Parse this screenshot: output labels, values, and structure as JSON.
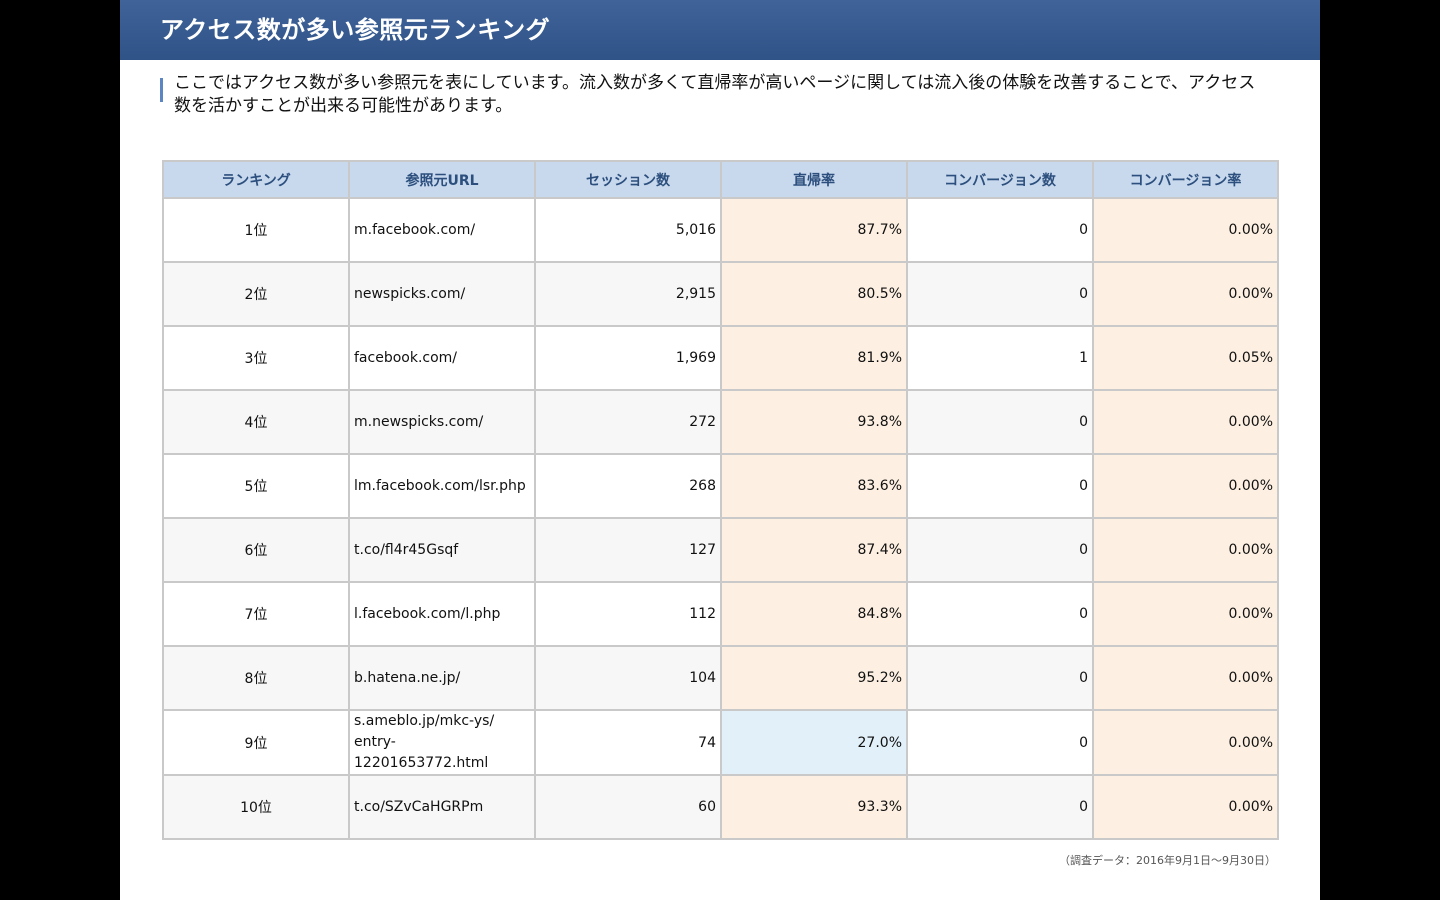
{
  "header": {
    "title": "アクセス数が多い参照元ランキング"
  },
  "lead": {
    "text": "ここではアクセス数が多い参照元を表にしています。流入数が多くて直帰率が高いページに関しては流入後の体験を改善することで、アクセス数を活かすことが出来る可能性があります。"
  },
  "table": {
    "headers": {
      "rank": "ランキング",
      "url": "参照元URL",
      "sessions": "セッション数",
      "bounce": "直帰率",
      "conversions": "コンバージョン数",
      "conv_rate": "コンバージョン率"
    },
    "rows": [
      {
        "rank": "1位",
        "url_lines": [
          "m.facebook.com/",
          ""
        ],
        "sessions": "5,016",
        "bounce": "87.7%",
        "conversions": "0",
        "conv_rate": "0.00%"
      },
      {
        "rank": "2位",
        "url_lines": [
          "newspicks.com/",
          ""
        ],
        "sessions": "2,915",
        "bounce": "80.5%",
        "conversions": "0",
        "conv_rate": "0.00%"
      },
      {
        "rank": "3位",
        "url_lines": [
          "facebook.com/",
          ""
        ],
        "sessions": "1,969",
        "bounce": "81.9%",
        "conversions": "1",
        "conv_rate": "0.05%"
      },
      {
        "rank": "4位",
        "url_lines": [
          "m.newspicks.com/",
          ""
        ],
        "sessions": "272",
        "bounce": "93.8%",
        "conversions": "0",
        "conv_rate": "0.00%"
      },
      {
        "rank": "5位",
        "url_lines": [
          "lm.facebook.com/lsr.php",
          ""
        ],
        "sessions": "268",
        "bounce": "83.6%",
        "conversions": "0",
        "conv_rate": "0.00%"
      },
      {
        "rank": "6位",
        "url_lines": [
          "t.co/fl4r45Gsqf",
          ""
        ],
        "sessions": "127",
        "bounce": "87.4%",
        "conversions": "0",
        "conv_rate": "0.00%"
      },
      {
        "rank": "7位",
        "url_lines": [
          "l.facebook.com/l.php",
          ""
        ],
        "sessions": "112",
        "bounce": "84.8%",
        "conversions": "0",
        "conv_rate": "0.00%"
      },
      {
        "rank": "8位",
        "url_lines": [
          "b.hatena.ne.jp/",
          ""
        ],
        "sessions": "104",
        "bounce": "95.2%",
        "conversions": "0",
        "conv_rate": "0.00%"
      },
      {
        "rank": "9位",
        "url_lines": [
          "s.ameblo.jp/mkc-ys/",
          "entry-12201653772.html"
        ],
        "sessions": "74",
        "bounce": "27.0%",
        "conversions": "0",
        "conv_rate": "0.00%"
      },
      {
        "rank": "10位",
        "url_lines": [
          "t.co/SZvCaHGRPm",
          ""
        ],
        "sessions": "60",
        "bounce": "93.3%",
        "conversions": "0",
        "conv_rate": "0.00%"
      }
    ]
  },
  "footnote": "（調査データ：2016年9月1日～9月30日）",
  "colors": {
    "header_bg": "#3a5d92",
    "table_header_bg": "#c8d9ee",
    "highlight_orange": "#fdf0e2",
    "highlight_blue": "#e2f0f9"
  }
}
